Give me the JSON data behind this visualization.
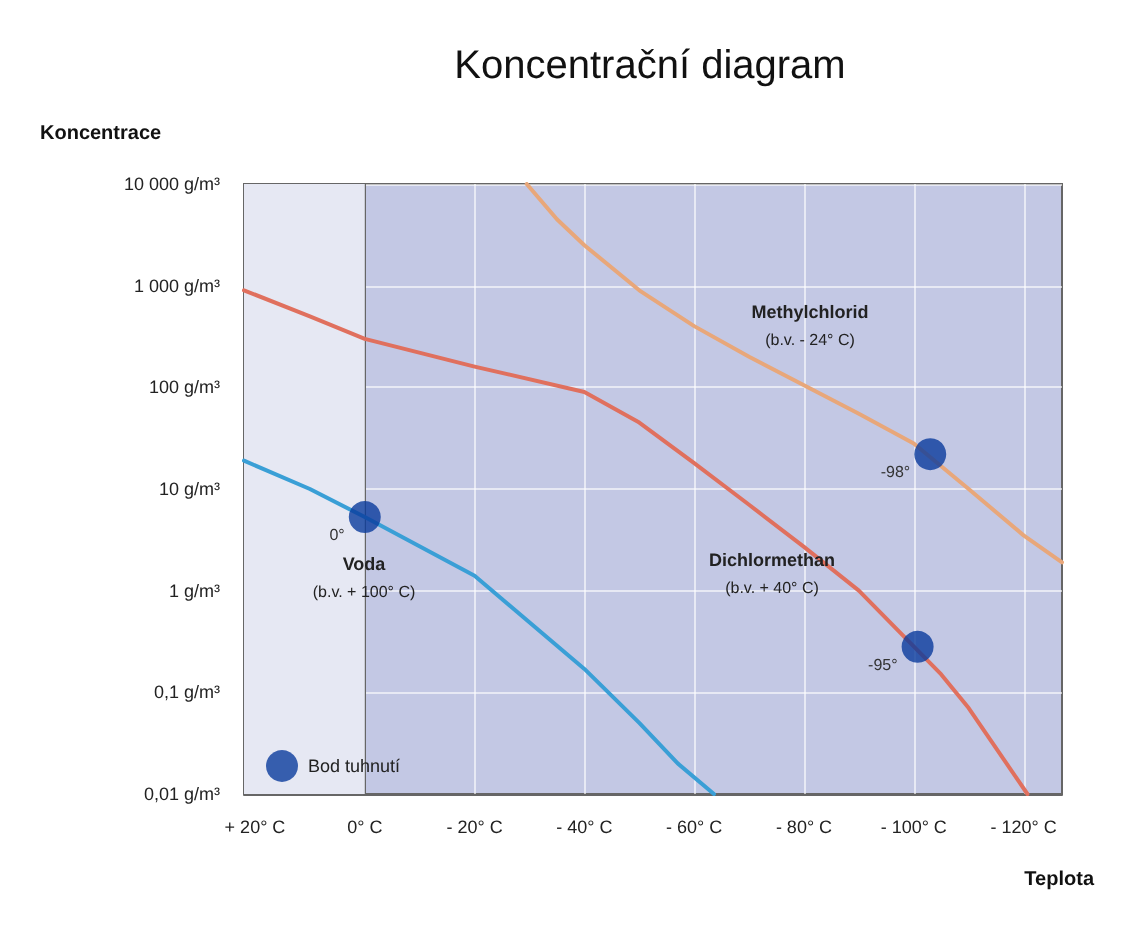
{
  "chart_data": {
    "type": "line",
    "title": "Koncentrační diagram",
    "xlabel": "Teplota",
    "ylabel": "Koncentrace",
    "log": "y",
    "grid": true,
    "legend": "bottom left",
    "marker": "none",
    "xlim": [
      22,
      -127
    ],
    "ylim": [
      0.01,
      10000
    ],
    "xticks": [
      {
        "value": 20,
        "label": "+ 20° C"
      },
      {
        "value": 0,
        "label": "0° C"
      },
      {
        "value": -20,
        "label": "- 20° C"
      },
      {
        "value": -40,
        "label": "- 40° C"
      },
      {
        "value": -60,
        "label": "- 60° C"
      },
      {
        "value": -80,
        "label": "- 80° C"
      },
      {
        "value": -100,
        "label": "- 100° C"
      },
      {
        "value": -120,
        "label": "- 120° C"
      }
    ],
    "yticks": [
      {
        "value": 0.01,
        "label": "0,01 g/m³"
      },
      {
        "value": 0.1,
        "label": "0,1 g/m³"
      },
      {
        "value": 1,
        "label": "1 g/m³"
      },
      {
        "value": 10,
        "label": "10 g/m³"
      },
      {
        "value": 100,
        "label": "100 g/m³"
      },
      {
        "value": 1000,
        "label": "1 000 g/m³"
      },
      {
        "value": 10000,
        "label": "10 000 g/m³"
      }
    ],
    "bands": [
      {
        "axis": "x",
        "from": 22,
        "to": 0,
        "color": "#e6e8f3"
      }
    ],
    "series": [
      {
        "color": "#3a9fd6",
        "x": [
          22,
          10,
          0,
          -20,
          -40,
          -50,
          -57,
          -63.6
        ],
        "values": [
          19,
          10,
          5.3,
          1.4,
          0.17,
          0.05,
          0.02,
          0.01
        ]
      },
      {
        "color": "#e0705e",
        "x": [
          22,
          10,
          0,
          -20,
          -40,
          -50,
          -60,
          -70,
          -80,
          -90,
          -105,
          -110,
          -120.7
        ],
        "values": [
          900,
          500,
          300,
          160,
          90,
          45,
          18,
          7,
          2.7,
          1,
          0.15,
          0.07,
          0.01
        ]
      },
      {
        "color": "#e8a77a",
        "x": [
          -29.5,
          -35,
          -40,
          -50,
          -60,
          -70,
          -80,
          -90,
          -100,
          -110,
          -120,
          -127
        ],
        "values": [
          10000,
          4500,
          2500,
          900,
          400,
          200,
          105,
          55,
          28,
          10,
          3.5,
          1.9
        ]
      },
      {
        "type": "scatter",
        "name": "Bod tuhnutí",
        "color": "#0a3b9c",
        "marker": "circle",
        "x": [
          0,
          -103,
          -100.7
        ],
        "values": [
          5.3,
          22,
          0.28
        ]
      }
    ],
    "annotations": [
      "Voda",
      "(b.v. + 100° C)",
      "Methylchlorid",
      "(b.v. - 24° C)",
      "Dichlormethan",
      "(b.v. + 40° C)",
      {
        "text": "0°",
        "x": 0,
        "y": 5.3
      },
      {
        "text": "-98°",
        "x": -103,
        "y": 22
      },
      {
        "text": "-95°",
        "x": -100.7,
        "y": 0.28
      }
    ]
  }
}
